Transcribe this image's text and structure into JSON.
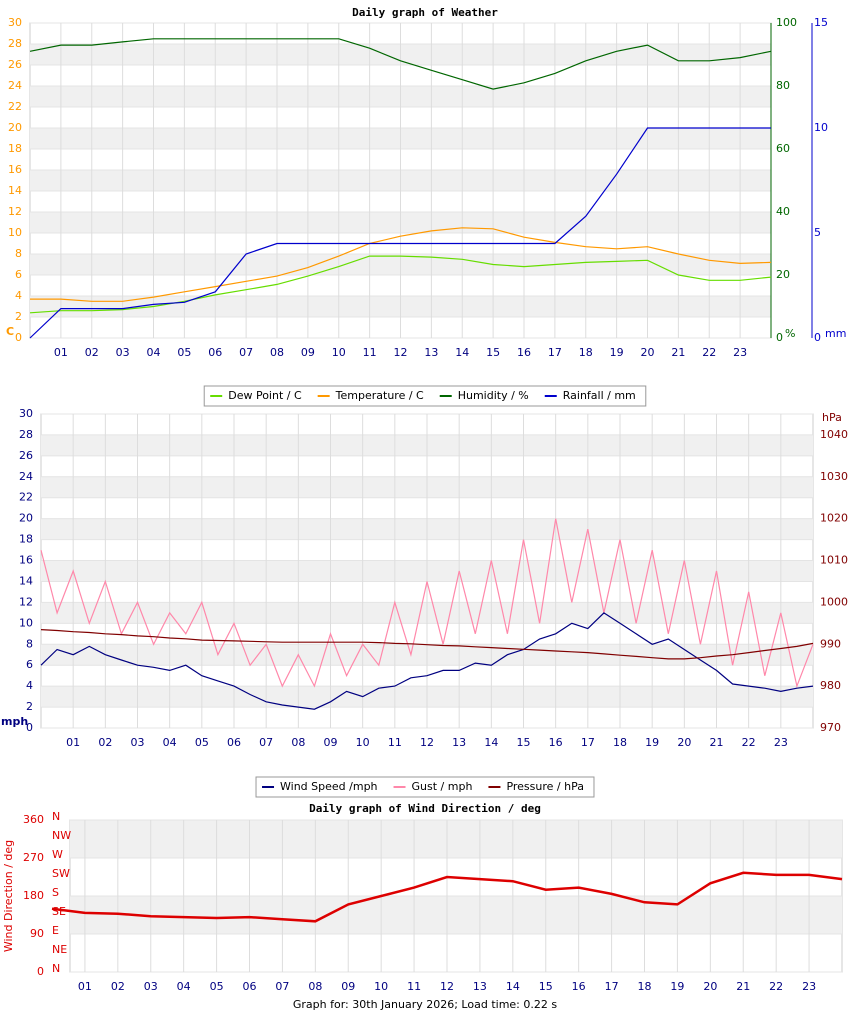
{
  "chart_data": [
    {
      "type": "line",
      "title": "Daily graph of Weather",
      "x": [
        0,
        1,
        2,
        3,
        4,
        5,
        6,
        7,
        8,
        9,
        10,
        11,
        12,
        13,
        14,
        15,
        16,
        17,
        18,
        19,
        20,
        21,
        22,
        23,
        24
      ],
      "xlim": [
        0,
        24
      ],
      "xticks": [
        {
          "value": 1,
          "label": "01"
        },
        {
          "value": 2,
          "label": "02"
        },
        {
          "value": 3,
          "label": "03"
        },
        {
          "value": 4,
          "label": "04"
        },
        {
          "value": 5,
          "label": "05"
        },
        {
          "value": 6,
          "label": "06"
        },
        {
          "value": 7,
          "label": "07"
        },
        {
          "value": 8,
          "label": "08"
        },
        {
          "value": 9,
          "label": "09"
        },
        {
          "value": 10,
          "label": "10"
        },
        {
          "value": 11,
          "label": "11"
        },
        {
          "value": 12,
          "label": "12"
        },
        {
          "value": 13,
          "label": "13"
        },
        {
          "value": 14,
          "label": "14"
        },
        {
          "value": 15,
          "label": "15"
        },
        {
          "value": 16,
          "label": "16"
        },
        {
          "value": 17,
          "label": "17"
        },
        {
          "value": 18,
          "label": "18"
        },
        {
          "value": 19,
          "label": "19"
        },
        {
          "value": 20,
          "label": "20"
        },
        {
          "value": 21,
          "label": "21"
        },
        {
          "value": 22,
          "label": "22"
        },
        {
          "value": 23,
          "label": "23"
        }
      ],
      "ylim": [
        0,
        30
      ],
      "yticks": [
        0,
        2,
        4,
        6,
        8,
        10,
        12,
        14,
        16,
        18,
        20,
        22,
        24,
        26,
        28,
        30
      ],
      "ylabel": "C",
      "yaxis_color": "#ff9900",
      "y2lim": [
        0,
        100
      ],
      "y2ticks": [
        0,
        20,
        40,
        60,
        80,
        100
      ],
      "y2label": "%",
      "y2axis_color": "#006600",
      "y3lim": [
        0,
        15
      ],
      "y3ticks": [
        0,
        5,
        10,
        15
      ],
      "y3label": "mm",
      "y3axis_color": "#0000cc",
      "grid": true,
      "series": [
        {
          "name": "Dew Point / C",
          "color": "#66dd00",
          "values": [
            2.4,
            2.6,
            2.6,
            2.7,
            3.0,
            3.5,
            4.1,
            4.6,
            5.1,
            5.9,
            6.8,
            7.8,
            7.8,
            7.7,
            7.5,
            7.0,
            6.8,
            7.0,
            7.2,
            7.3,
            7.4,
            6.0,
            5.5,
            5.5,
            5.8
          ]
        },
        {
          "name": "Temperature / C",
          "color": "#ff9900",
          "values": [
            3.7,
            3.7,
            3.5,
            3.5,
            3.9,
            4.4,
            4.9,
            5.4,
            5.9,
            6.7,
            7.8,
            9.0,
            9.7,
            10.2,
            10.5,
            10.4,
            9.6,
            9.1,
            8.7,
            8.5,
            8.7,
            8.0,
            7.4,
            7.1,
            7.2
          ]
        },
        {
          "name": "Humidity / %",
          "color": "#006600",
          "axis": "y2",
          "values": [
            91,
            93,
            93,
            94,
            95,
            95,
            95,
            95,
            95,
            95,
            95,
            92,
            88,
            85,
            82,
            79,
            81,
            84,
            88,
            91,
            93,
            88,
            88,
            89,
            91
          ]
        },
        {
          "name": "Rainfall / mm",
          "color": "#0000cc",
          "axis": "y3",
          "values": [
            0,
            1.4,
            1.4,
            1.4,
            1.6,
            1.7,
            2.2,
            4.0,
            4.5,
            4.5,
            4.5,
            4.5,
            4.5,
            4.5,
            4.5,
            4.5,
            4.5,
            4.5,
            5.8,
            7.8,
            10,
            10,
            10,
            10,
            10
          ]
        }
      ]
    },
    {
      "type": "line",
      "x": [
        0,
        0.5,
        1,
        1.5,
        2,
        2.5,
        3,
        3.5,
        4,
        4.5,
        5,
        5.5,
        6,
        6.5,
        7,
        7.5,
        8,
        8.5,
        9,
        9.5,
        10,
        10.5,
        11,
        11.5,
        12,
        12.5,
        13,
        13.5,
        14,
        14.5,
        15,
        15.5,
        16,
        16.5,
        17,
        17.5,
        18,
        18.5,
        19,
        19.5,
        20,
        20.5,
        21,
        21.5,
        22,
        22.5,
        23,
        23.5,
        24
      ],
      "xlim": [
        0,
        24
      ],
      "xticks": [
        {
          "value": 1,
          "label": "01"
        },
        {
          "value": 2,
          "label": "02"
        },
        {
          "value": 3,
          "label": "03"
        },
        {
          "value": 4,
          "label": "04"
        },
        {
          "value": 5,
          "label": "05"
        },
        {
          "value": 6,
          "label": "06"
        },
        {
          "value": 7,
          "label": "07"
        },
        {
          "value": 8,
          "label": "08"
        },
        {
          "value": 9,
          "label": "09"
        },
        {
          "value": 10,
          "label": "10"
        },
        {
          "value": 11,
          "label": "11"
        },
        {
          "value": 12,
          "label": "12"
        },
        {
          "value": 13,
          "label": "13"
        },
        {
          "value": 14,
          "label": "14"
        },
        {
          "value": 15,
          "label": "15"
        },
        {
          "value": 16,
          "label": "16"
        },
        {
          "value": 17,
          "label": "17"
        },
        {
          "value": 18,
          "label": "18"
        },
        {
          "value": 19,
          "label": "19"
        },
        {
          "value": 20,
          "label": "20"
        },
        {
          "value": 21,
          "label": "21"
        },
        {
          "value": 22,
          "label": "22"
        },
        {
          "value": 23,
          "label": "23"
        }
      ],
      "ylim": [
        0,
        30
      ],
      "yticks": [
        0,
        2,
        4,
        6,
        8,
        10,
        12,
        14,
        16,
        18,
        20,
        22,
        24,
        26,
        28,
        30
      ],
      "ylabel": "mph",
      "yaxis_color": "#000080",
      "y2lim": [
        970,
        1045
      ],
      "y2ticks": [
        970,
        980,
        990,
        1000,
        1010,
        1020,
        1030,
        1040
      ],
      "y2label": "hPa",
      "y2axis_color": "#800000",
      "grid": true,
      "series": [
        {
          "name": "Wind Speed /mph",
          "color": "#000080",
          "values": [
            6,
            7.5,
            7,
            7.8,
            7,
            6.5,
            6,
            5.8,
            5.5,
            6,
            5,
            4.5,
            4,
            3.2,
            2.5,
            2.2,
            2,
            1.8,
            2.5,
            3.5,
            3,
            3.8,
            4,
            4.8,
            5,
            5.5,
            5.5,
            6.2,
            6,
            7,
            7.5,
            8.5,
            9,
            10,
            9.5,
            11,
            10,
            9,
            8,
            8.5,
            7.5,
            6.5,
            5.5,
            4.2,
            4,
            3.8,
            3.5,
            3.8,
            4
          ]
        },
        {
          "name": "Gust / mph",
          "color": "#ff88aa",
          "values": [
            17,
            11,
            15,
            10,
            14,
            9,
            12,
            8,
            11,
            9,
            12,
            7,
            10,
            6,
            8,
            4,
            7,
            4,
            9,
            5,
            8,
            6,
            12,
            7,
            14,
            8,
            15,
            9,
            16,
            9,
            18,
            10,
            20,
            12,
            19,
            11,
            18,
            10,
            17,
            9,
            16,
            8,
            15,
            6,
            13,
            5,
            11,
            4,
            8
          ]
        },
        {
          "name": "Pressure / hPa",
          "color": "#800000",
          "axis": "y2",
          "values": [
            993.5,
            993.3,
            993,
            992.8,
            992.5,
            992.3,
            992,
            991.8,
            991.5,
            991.3,
            991,
            990.9,
            990.8,
            990.7,
            990.6,
            990.5,
            990.5,
            990.5,
            990.5,
            990.5,
            990.5,
            990.4,
            990.2,
            990.1,
            989.9,
            989.7,
            989.6,
            989.4,
            989.2,
            989,
            988.8,
            988.6,
            988.4,
            988.2,
            988,
            987.7,
            987.4,
            987.1,
            986.8,
            986.5,
            986.5,
            986.8,
            987.2,
            987.5,
            988,
            988.5,
            989,
            989.5,
            990.2
          ]
        }
      ]
    },
    {
      "type": "line",
      "title": "Daily graph of Wind Direction / deg",
      "x": [
        0,
        1,
        2,
        3,
        4,
        5,
        6,
        7,
        8,
        9,
        10,
        11,
        12,
        13,
        14,
        15,
        16,
        17,
        18,
        19,
        20,
        21,
        22,
        23,
        24
      ],
      "xlim": [
        0,
        24
      ],
      "xticks": [
        {
          "value": 1,
          "label": "01"
        },
        {
          "value": 2,
          "label": "02"
        },
        {
          "value": 3,
          "label": "03"
        },
        {
          "value": 4,
          "label": "04"
        },
        {
          "value": 5,
          "label": "05"
        },
        {
          "value": 6,
          "label": "06"
        },
        {
          "value": 7,
          "label": "07"
        },
        {
          "value": 8,
          "label": "08"
        },
        {
          "value": 9,
          "label": "09"
        },
        {
          "value": 10,
          "label": "10"
        },
        {
          "value": 11,
          "label": "11"
        },
        {
          "value": 12,
          "label": "12"
        },
        {
          "value": 13,
          "label": "13"
        },
        {
          "value": 14,
          "label": "14"
        },
        {
          "value": 15,
          "label": "15"
        },
        {
          "value": 16,
          "label": "16"
        },
        {
          "value": 17,
          "label": "17"
        },
        {
          "value": 18,
          "label": "18"
        },
        {
          "value": 19,
          "label": "19"
        },
        {
          "value": 20,
          "label": "20"
        },
        {
          "value": 21,
          "label": "21"
        },
        {
          "value": 22,
          "label": "22"
        },
        {
          "value": 23,
          "label": "23"
        }
      ],
      "ylim": [
        0,
        360
      ],
      "yticks": [
        0,
        90,
        180,
        270,
        360
      ],
      "ylabel": "Wind Direction / deg",
      "yaxis_color": "#dd0000",
      "compass_labels": [
        "N",
        "NW",
        "W",
        "SW",
        "S",
        "SE",
        "E",
        "NE",
        "N"
      ],
      "grid": true,
      "series": [
        {
          "color": "#dd0000",
          "values": [
            150,
            140,
            138,
            132,
            130,
            128,
            130,
            125,
            120,
            160,
            180,
            200,
            225,
            220,
            215,
            195,
            200,
            185,
            165,
            160,
            210,
            235,
            230,
            230,
            220
          ]
        }
      ]
    }
  ],
  "footer": "Graph for: 30th January 2026; Load time: 0.22 s"
}
